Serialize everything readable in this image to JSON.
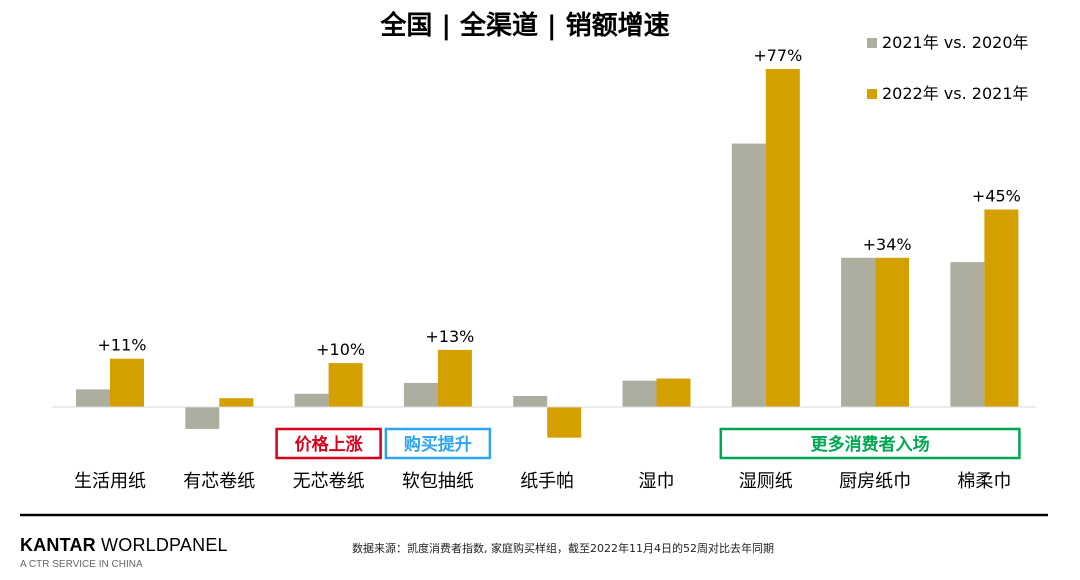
{
  "chart_data": {
    "type": "bar",
    "title": "全国 | 全渠道 | 销额增速",
    "categories": [
      "生活用纸",
      "有芯卷纸",
      "无芯卷纸",
      "软包抽纸",
      "纸手帕",
      "湿巾",
      "湿厕纸",
      "厨房纸巾",
      "棉柔巾"
    ],
    "series": [
      {
        "name": "2021年 vs. 2020年",
        "values": [
          4,
          -5,
          3,
          5.5,
          2.5,
          6,
          60,
          34,
          33
        ],
        "color": "#ADADA0"
      },
      {
        "name": "2022年 vs. 2021年",
        "values": [
          11,
          2,
          10,
          13,
          -7,
          6.5,
          77,
          34,
          45
        ],
        "color": "#D4A000"
      }
    ],
    "data_labels": [
      "+11%",
      "",
      "+10%",
      "+13%",
      "",
      "",
      "+77%",
      "+34%",
      "+45%"
    ],
    "annotations": [
      {
        "text": "价格上涨",
        "category_index": 2,
        "color": "#D9001B"
      },
      {
        "text": "购买提升",
        "category_index": 3,
        "color": "#2EA3F2"
      },
      {
        "text": "更多消费者入场",
        "category_index_start": 6,
        "category_index_end": 8,
        "color": "#00A651"
      }
    ],
    "legend_position": "top-right",
    "grid": false,
    "axes_visible": false
  },
  "footer": {
    "brand_bold": "KANTAR",
    "brand_rest": " WORLDPANEL",
    "brand_sub": "A CTR SERVICE IN CHINA",
    "source": "数据来源：凯度消费者指数, 家庭购买样组，截至2022年11月4日的52周对比去年同期"
  }
}
